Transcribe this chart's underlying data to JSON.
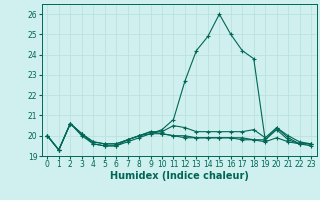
{
  "xlabel": "Humidex (Indice chaleur)",
  "bg_color": "#cff0ee",
  "grid_color": "#b8e0dc",
  "line_color": "#006655",
  "xlim": [
    -0.5,
    23.5
  ],
  "ylim": [
    19.0,
    26.5
  ],
  "yticks": [
    19,
    20,
    21,
    22,
    23,
    24,
    25,
    26
  ],
  "xticks": [
    0,
    1,
    2,
    3,
    4,
    5,
    6,
    7,
    8,
    9,
    10,
    11,
    12,
    13,
    14,
    15,
    16,
    17,
    18,
    19,
    20,
    21,
    22,
    23
  ],
  "lines": [
    [
      20.0,
      19.3,
      20.6,
      20.1,
      19.6,
      19.5,
      19.5,
      19.8,
      20.0,
      20.1,
      20.3,
      20.8,
      22.7,
      24.2,
      24.9,
      26.0,
      25.0,
      24.2,
      23.8,
      19.8,
      20.4,
      19.9,
      19.6,
      19.6
    ],
    [
      20.0,
      19.3,
      20.6,
      20.1,
      19.7,
      19.6,
      19.6,
      19.8,
      20.0,
      20.2,
      20.2,
      20.5,
      20.4,
      20.2,
      20.2,
      20.2,
      20.2,
      20.2,
      20.3,
      19.9,
      20.4,
      20.0,
      19.7,
      19.6
    ],
    [
      20.0,
      19.3,
      20.6,
      20.1,
      19.7,
      19.6,
      19.6,
      19.8,
      20.0,
      20.2,
      20.1,
      20.0,
      20.0,
      19.9,
      19.9,
      19.9,
      19.9,
      19.9,
      19.8,
      19.8,
      20.3,
      19.8,
      19.6,
      19.6
    ],
    [
      20.0,
      19.3,
      20.6,
      20.0,
      19.6,
      19.5,
      19.5,
      19.7,
      19.9,
      20.1,
      20.1,
      20.0,
      19.9,
      19.9,
      19.9,
      19.9,
      19.9,
      19.8,
      19.8,
      19.7,
      19.9,
      19.7,
      19.6,
      19.5
    ]
  ],
  "marker": "+",
  "markersize": 3,
  "linewidth": 0.8,
  "tick_fontsize": 5.5,
  "xlabel_fontsize": 7
}
